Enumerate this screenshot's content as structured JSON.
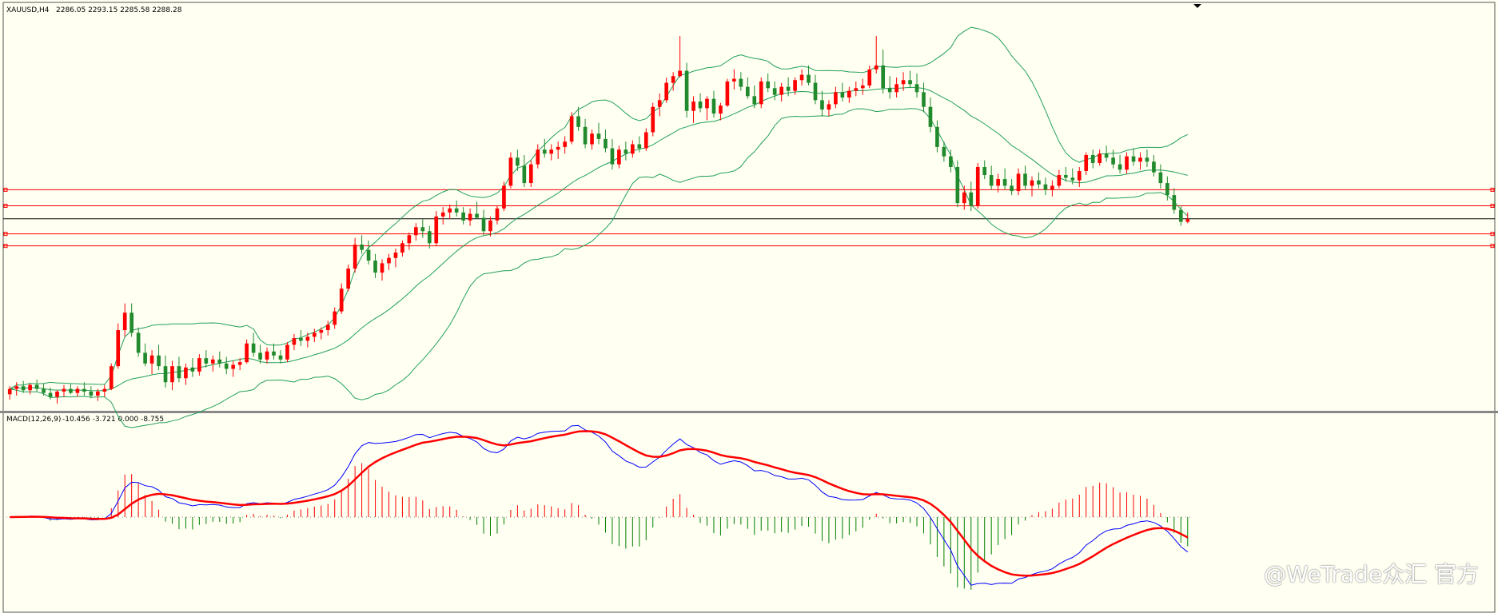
{
  "header": {
    "symbol": "XAUUSD,H4",
    "ohlc": "2286.05 2293.15 2285.58 2288.28"
  },
  "macd_header": {
    "label": "MACD(12,26,9)",
    "values": "-10.456 -3.721 0.000 -8.755"
  },
  "watermark": "@WeTrade众汇 官方",
  "colors": {
    "background": "#fffff2",
    "bull": "#ff0000",
    "bear": "#208a2c",
    "bollinger": "#21a05a",
    "hline": "#ff0000",
    "price_line": "#000000",
    "macd_line": "#0000ff",
    "signal_line": "#ff0000",
    "hist_pos": "#ff0000",
    "hist_neg": "#008000"
  },
  "chart_data": [
    {
      "type": "candlestick",
      "name": "XAUUSD,H4",
      "ylim": [
        2150,
        2440
      ],
      "x": {
        "count": 240
      },
      "price_now": 2288.28,
      "horizontal_levels": [
        2310,
        2298,
        2277,
        2268
      ],
      "candles": [
        [
          2157,
          2163,
          2153,
          2161
        ],
        [
          2161,
          2166,
          2156,
          2163
        ],
        [
          2163,
          2167,
          2158,
          2160
        ],
        [
          2160,
          2165,
          2157,
          2164
        ],
        [
          2164,
          2168,
          2159,
          2161
        ],
        [
          2161,
          2165,
          2156,
          2158
        ],
        [
          2158,
          2162,
          2153,
          2155
        ],
        [
          2155,
          2160,
          2150,
          2159
        ],
        [
          2159,
          2164,
          2155,
          2161
        ],
        [
          2161,
          2165,
          2157,
          2158
        ],
        [
          2158,
          2163,
          2155,
          2161
        ],
        [
          2161,
          2166,
          2156,
          2159
        ],
        [
          2159,
          2163,
          2154,
          2156
        ],
        [
          2156,
          2161,
          2152,
          2159
        ],
        [
          2159,
          2164,
          2155,
          2161
        ],
        [
          2161,
          2180,
          2160,
          2178
        ],
        [
          2178,
          2210,
          2176,
          2205
        ],
        [
          2205,
          2225,
          2200,
          2218
        ],
        [
          2218,
          2225,
          2200,
          2203
        ],
        [
          2203,
          2207,
          2185,
          2188
        ],
        [
          2188,
          2195,
          2178,
          2180
        ],
        [
          2180,
          2190,
          2172,
          2186
        ],
        [
          2186,
          2194,
          2175,
          2178
        ],
        [
          2178,
          2186,
          2162,
          2166
        ],
        [
          2166,
          2182,
          2160,
          2178
        ],
        [
          2178,
          2185,
          2166,
          2169
        ],
        [
          2169,
          2180,
          2164,
          2177
        ],
        [
          2177,
          2184,
          2170,
          2174
        ],
        [
          2174,
          2187,
          2171,
          2184
        ],
        [
          2184,
          2190,
          2177,
          2180
        ],
        [
          2180,
          2186,
          2174,
          2183
        ],
        [
          2183,
          2189,
          2177,
          2180
        ],
        [
          2180,
          2185,
          2172,
          2176
        ],
        [
          2176,
          2182,
          2170,
          2179
        ],
        [
          2179,
          2184,
          2175,
          2181
        ],
        [
          2181,
          2198,
          2180,
          2195
        ],
        [
          2195,
          2203,
          2185,
          2188
        ],
        [
          2188,
          2194,
          2180,
          2183
        ],
        [
          2183,
          2192,
          2180,
          2189
        ],
        [
          2189,
          2195,
          2183,
          2186
        ],
        [
          2186,
          2190,
          2180,
          2183
        ],
        [
          2183,
          2196,
          2181,
          2194
        ],
        [
          2194,
          2202,
          2190,
          2199
        ],
        [
          2199,
          2205,
          2193,
          2197
        ],
        [
          2197,
          2203,
          2192,
          2200
        ],
        [
          2200,
          2206,
          2196,
          2203
        ],
        [
          2203,
          2207,
          2198,
          2205
        ],
        [
          2205,
          2212,
          2201,
          2209
        ],
        [
          2209,
          2222,
          2206,
          2219
        ],
        [
          2219,
          2240,
          2217,
          2236
        ],
        [
          2236,
          2254,
          2234,
          2251
        ],
        [
          2251,
          2274,
          2248,
          2269
        ],
        [
          2269,
          2276,
          2262,
          2265
        ],
        [
          2265,
          2272,
          2254,
          2257
        ],
        [
          2257,
          2262,
          2244,
          2248
        ],
        [
          2248,
          2258,
          2242,
          2255
        ],
        [
          2255,
          2262,
          2250,
          2259
        ],
        [
          2259,
          2266,
          2252,
          2263
        ],
        [
          2263,
          2272,
          2260,
          2270
        ],
        [
          2270,
          2278,
          2265,
          2276
        ],
        [
          2276,
          2285,
          2272,
          2282
        ],
        [
          2282,
          2288,
          2274,
          2279
        ],
        [
          2279,
          2283,
          2266,
          2270
        ],
        [
          2270,
          2294,
          2268,
          2290
        ],
        [
          2290,
          2297,
          2284,
          2293
        ],
        [
          2293,
          2299,
          2288,
          2296
        ],
        [
          2296,
          2302,
          2290,
          2293
        ],
        [
          2293,
          2297,
          2284,
          2287
        ],
        [
          2287,
          2296,
          2283,
          2292
        ],
        [
          2292,
          2301,
          2288,
          2289
        ],
        [
          2289,
          2295,
          2276,
          2279
        ],
        [
          2279,
          2290,
          2275,
          2287
        ],
        [
          2287,
          2298,
          2284,
          2296
        ],
        [
          2296,
          2316,
          2294,
          2313
        ],
        [
          2313,
          2338,
          2311,
          2334
        ],
        [
          2334,
          2340,
          2324,
          2328
        ],
        [
          2328,
          2336,
          2312,
          2315
        ],
        [
          2315,
          2332,
          2312,
          2329
        ],
        [
          2329,
          2344,
          2326,
          2340
        ],
        [
          2340,
          2348,
          2334,
          2337
        ],
        [
          2337,
          2344,
          2332,
          2340
        ],
        [
          2340,
          2346,
          2333,
          2342
        ],
        [
          2342,
          2350,
          2337,
          2346
        ],
        [
          2346,
          2368,
          2344,
          2365
        ],
        [
          2365,
          2372,
          2354,
          2357
        ],
        [
          2357,
          2363,
          2341,
          2344
        ],
        [
          2344,
          2355,
          2340,
          2352
        ],
        [
          2352,
          2360,
          2344,
          2348
        ],
        [
          2348,
          2355,
          2338,
          2341
        ],
        [
          2341,
          2348,
          2325,
          2329
        ],
        [
          2329,
          2343,
          2326,
          2340
        ],
        [
          2340,
          2346,
          2332,
          2337
        ],
        [
          2337,
          2347,
          2334,
          2344
        ],
        [
          2344,
          2350,
          2338,
          2341
        ],
        [
          2341,
          2356,
          2339,
          2353
        ],
        [
          2353,
          2375,
          2350,
          2372
        ],
        [
          2372,
          2382,
          2365,
          2377
        ],
        [
          2377,
          2394,
          2375,
          2390
        ],
        [
          2390,
          2398,
          2384,
          2395
        ],
        [
          2395,
          2425,
          2394,
          2399
        ],
        [
          2399,
          2405,
          2364,
          2369
        ],
        [
          2369,
          2380,
          2360,
          2376
        ],
        [
          2376,
          2382,
          2368,
          2371
        ],
        [
          2371,
          2380,
          2362,
          2378
        ],
        [
          2378,
          2384,
          2364,
          2367
        ],
        [
          2367,
          2375,
          2362,
          2373
        ],
        [
          2373,
          2393,
          2372,
          2391
        ],
        [
          2391,
          2400,
          2385,
          2393
        ],
        [
          2393,
          2398,
          2384,
          2387
        ],
        [
          2387,
          2394,
          2378,
          2380
        ],
        [
          2380,
          2388,
          2371,
          2374
        ],
        [
          2374,
          2394,
          2371,
          2391
        ],
        [
          2391,
          2397,
          2383,
          2386
        ],
        [
          2386,
          2391,
          2377,
          2381
        ],
        [
          2381,
          2390,
          2376,
          2387
        ],
        [
          2387,
          2394,
          2380,
          2384
        ],
        [
          2384,
          2394,
          2381,
          2392
        ],
        [
          2392,
          2400,
          2388,
          2396
        ],
        [
          2396,
          2403,
          2388,
          2390
        ],
        [
          2390,
          2396,
          2374,
          2377
        ],
        [
          2377,
          2384,
          2365,
          2370
        ],
        [
          2370,
          2377,
          2365,
          2374
        ],
        [
          2374,
          2387,
          2371,
          2383
        ],
        [
          2383,
          2390,
          2376,
          2379
        ],
        [
          2379,
          2387,
          2375,
          2384
        ],
        [
          2384,
          2391,
          2380,
          2386
        ],
        [
          2386,
          2393,
          2381,
          2388
        ],
        [
          2388,
          2403,
          2386,
          2400
        ],
        [
          2400,
          2425,
          2397,
          2403
        ],
        [
          2403,
          2415,
          2382,
          2386
        ],
        [
          2386,
          2395,
          2378,
          2383
        ],
        [
          2383,
          2394,
          2379,
          2389
        ],
        [
          2389,
          2398,
          2384,
          2392
        ],
        [
          2392,
          2399,
          2386,
          2389
        ],
        [
          2389,
          2397,
          2379,
          2383
        ],
        [
          2383,
          2390,
          2368,
          2372
        ],
        [
          2372,
          2379,
          2353,
          2357
        ],
        [
          2357,
          2362,
          2338,
          2342
        ],
        [
          2342,
          2346,
          2331,
          2335
        ],
        [
          2335,
          2340,
          2323,
          2327
        ],
        [
          2327,
          2332,
          2297,
          2300
        ],
        [
          2300,
          2313,
          2295,
          2308
        ],
        [
          2308,
          2316,
          2294,
          2298
        ],
        [
          2298,
          2330,
          2296,
          2327
        ],
        [
          2327,
          2332,
          2318,
          2321
        ],
        [
          2321,
          2328,
          2310,
          2313
        ],
        [
          2313,
          2322,
          2308,
          2318
        ],
        [
          2318,
          2326,
          2310,
          2313
        ],
        [
          2313,
          2318,
          2306,
          2309
        ],
        [
          2309,
          2326,
          2306,
          2322
        ],
        [
          2322,
          2328,
          2310,
          2313
        ],
        [
          2313,
          2320,
          2305,
          2317
        ],
        [
          2317,
          2323,
          2311,
          2314
        ],
        [
          2314,
          2319,
          2306,
          2310
        ],
        [
          2310,
          2317,
          2305,
          2313
        ],
        [
          2313,
          2325,
          2311,
          2321
        ],
        [
          2321,
          2327,
          2316,
          2319
        ],
        [
          2319,
          2326,
          2314,
          2317
        ],
        [
          2317,
          2327,
          2312,
          2324
        ],
        [
          2324,
          2338,
          2321,
          2336
        ],
        [
          2336,
          2340,
          2326,
          2330
        ],
        [
          2330,
          2340,
          2328,
          2337
        ],
        [
          2337,
          2343,
          2331,
          2334
        ],
        [
          2334,
          2340,
          2326,
          2329
        ],
        [
          2329,
          2336,
          2322,
          2325
        ],
        [
          2325,
          2338,
          2322,
          2335
        ],
        [
          2335,
          2341,
          2328,
          2331
        ],
        [
          2331,
          2338,
          2325,
          2334
        ],
        [
          2334,
          2340,
          2327,
          2331
        ],
        [
          2331,
          2336,
          2320,
          2323
        ],
        [
          2323,
          2329,
          2311,
          2315
        ],
        [
          2315,
          2320,
          2302,
          2306
        ],
        [
          2306,
          2311,
          2292,
          2295
        ],
        [
          2295,
          2298,
          2283,
          2286
        ],
        [
          2286,
          2293,
          2285,
          2288
        ]
      ],
      "bollinger": {
        "period": 20,
        "note": "upper, middle and lower bands computed from candle closes"
      }
    },
    {
      "type": "macd",
      "name": "MACD(12,26,9)",
      "params": [
        12,
        26,
        9
      ],
      "ylim": [
        -25,
        25
      ],
      "values_now": {
        "macd": -10.456,
        "signal": -3.721,
        "zero": 0.0,
        "hist": -8.755
      },
      "series_colors": {
        "macd": "#0000ff",
        "signal": "#ff0000"
      }
    }
  ]
}
